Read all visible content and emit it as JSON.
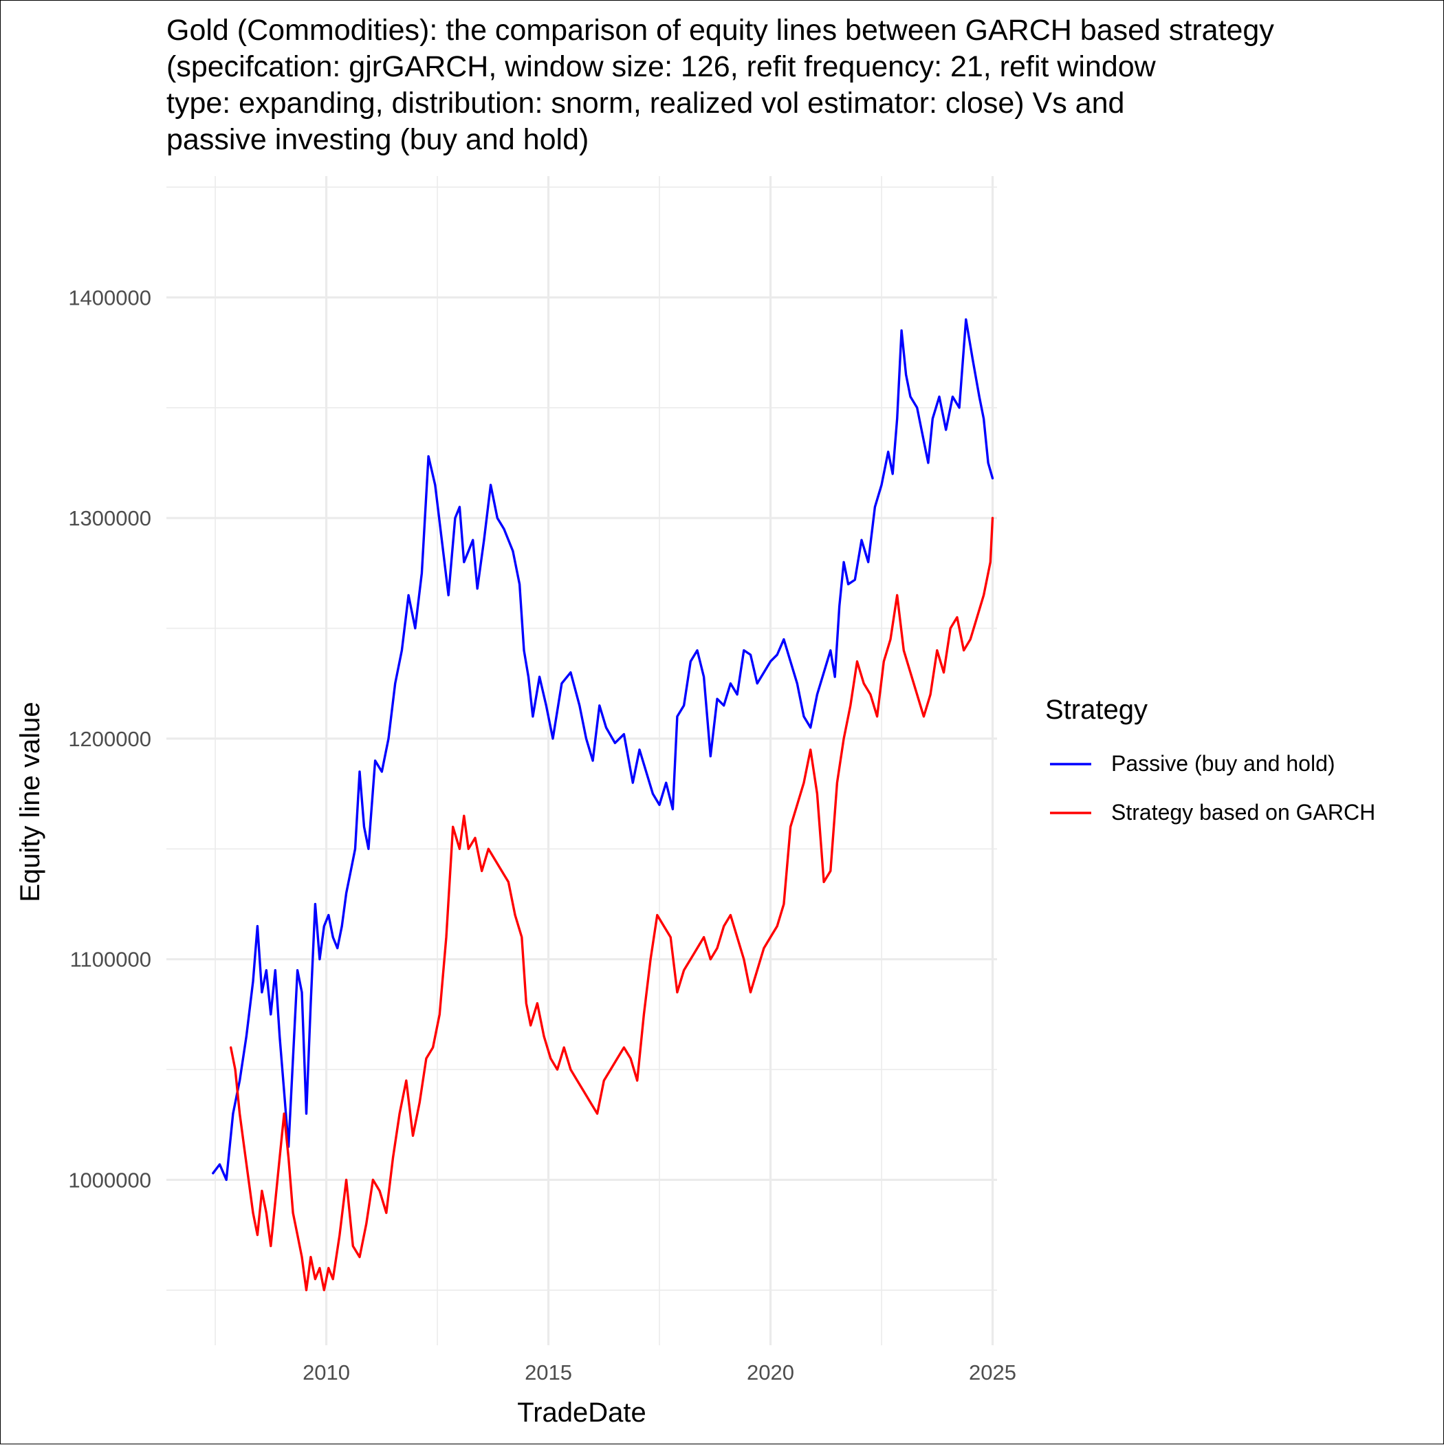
{
  "chart_data": {
    "type": "line",
    "title_lines": [
      "Gold (Commodities): the comparison of equity lines between GARCH based strategy",
      "(specifcation: gjrGARCH, window size: 126, refit frequency: 21, refit window",
      "type: expanding, distribution: snorm, realized vol estimator: close) Vs and",
      "passive investing (buy and hold)"
    ],
    "xlabel": "TradeDate",
    "ylabel": "Equity line value",
    "xlim": [
      2006.4,
      2025.1
    ],
    "ylim": [
      925000,
      1455000
    ],
    "x_ticks": [
      2010,
      2015,
      2020,
      2025
    ],
    "x_tick_labels": [
      "2010",
      "2015",
      "2020",
      "2025"
    ],
    "y_ticks": [
      1000000,
      1100000,
      1200000,
      1300000,
      1400000
    ],
    "y_tick_labels": [
      "1000000",
      "1100000",
      "1200000",
      "1300000",
      "1400000"
    ],
    "grid": true,
    "legend": {
      "title": "Strategy",
      "position": "right",
      "entries": [
        "Passive (buy and hold)",
        "Strategy based on GARCH"
      ]
    },
    "series": [
      {
        "name": "Passive (buy and hold)",
        "color": "#0000ff",
        "points": [
          [
            2007.45,
            1003000
          ],
          [
            2007.6,
            1007000
          ],
          [
            2007.75,
            1000000
          ],
          [
            2007.9,
            1030000
          ],
          [
            2008.05,
            1045000
          ],
          [
            2008.2,
            1065000
          ],
          [
            2008.35,
            1090000
          ],
          [
            2008.45,
            1115000
          ],
          [
            2008.55,
            1085000
          ],
          [
            2008.65,
            1095000
          ],
          [
            2008.75,
            1075000
          ],
          [
            2008.85,
            1095000
          ],
          [
            2008.95,
            1065000
          ],
          [
            2009.05,
            1040000
          ],
          [
            2009.15,
            1015000
          ],
          [
            2009.25,
            1055000
          ],
          [
            2009.35,
            1095000
          ],
          [
            2009.45,
            1085000
          ],
          [
            2009.55,
            1030000
          ],
          [
            2009.65,
            1080000
          ],
          [
            2009.75,
            1125000
          ],
          [
            2009.85,
            1100000
          ],
          [
            2009.95,
            1115000
          ],
          [
            2010.05,
            1120000
          ],
          [
            2010.15,
            1110000
          ],
          [
            2010.25,
            1105000
          ],
          [
            2010.35,
            1115000
          ],
          [
            2010.45,
            1130000
          ],
          [
            2010.55,
            1140000
          ],
          [
            2010.65,
            1150000
          ],
          [
            2010.75,
            1185000
          ],
          [
            2010.85,
            1160000
          ],
          [
            2010.95,
            1150000
          ],
          [
            2011.1,
            1190000
          ],
          [
            2011.25,
            1185000
          ],
          [
            2011.4,
            1200000
          ],
          [
            2011.55,
            1225000
          ],
          [
            2011.7,
            1240000
          ],
          [
            2011.85,
            1265000
          ],
          [
            2012.0,
            1250000
          ],
          [
            2012.15,
            1275000
          ],
          [
            2012.3,
            1328000
          ],
          [
            2012.45,
            1315000
          ],
          [
            2012.6,
            1290000
          ],
          [
            2012.75,
            1265000
          ],
          [
            2012.9,
            1300000
          ],
          [
            2013.0,
            1305000
          ],
          [
            2013.1,
            1280000
          ],
          [
            2013.2,
            1285000
          ],
          [
            2013.3,
            1290000
          ],
          [
            2013.4,
            1268000
          ],
          [
            2013.55,
            1290000
          ],
          [
            2013.7,
            1315000
          ],
          [
            2013.85,
            1300000
          ],
          [
            2014.0,
            1295000
          ],
          [
            2014.2,
            1285000
          ],
          [
            2014.35,
            1270000
          ],
          [
            2014.45,
            1240000
          ],
          [
            2014.55,
            1228000
          ],
          [
            2014.65,
            1210000
          ],
          [
            2014.8,
            1228000
          ],
          [
            2014.95,
            1215000
          ],
          [
            2015.1,
            1200000
          ],
          [
            2015.3,
            1225000
          ],
          [
            2015.5,
            1230000
          ],
          [
            2015.7,
            1215000
          ],
          [
            2015.85,
            1200000
          ],
          [
            2016.0,
            1190000
          ],
          [
            2016.15,
            1215000
          ],
          [
            2016.3,
            1205000
          ],
          [
            2016.5,
            1198000
          ],
          [
            2016.7,
            1202000
          ],
          [
            2016.9,
            1180000
          ],
          [
            2017.05,
            1195000
          ],
          [
            2017.2,
            1185000
          ],
          [
            2017.35,
            1175000
          ],
          [
            2017.5,
            1170000
          ],
          [
            2017.65,
            1180000
          ],
          [
            2017.8,
            1168000
          ],
          [
            2017.9,
            1210000
          ],
          [
            2018.05,
            1215000
          ],
          [
            2018.2,
            1235000
          ],
          [
            2018.35,
            1240000
          ],
          [
            2018.5,
            1228000
          ],
          [
            2018.65,
            1192000
          ],
          [
            2018.8,
            1218000
          ],
          [
            2018.95,
            1215000
          ],
          [
            2019.1,
            1225000
          ],
          [
            2019.25,
            1220000
          ],
          [
            2019.4,
            1240000
          ],
          [
            2019.55,
            1238000
          ],
          [
            2019.7,
            1225000
          ],
          [
            2019.85,
            1230000
          ],
          [
            2020.0,
            1235000
          ],
          [
            2020.15,
            1238000
          ],
          [
            2020.3,
            1245000
          ],
          [
            2020.45,
            1235000
          ],
          [
            2020.6,
            1225000
          ],
          [
            2020.75,
            1210000
          ],
          [
            2020.9,
            1205000
          ],
          [
            2021.05,
            1220000
          ],
          [
            2021.2,
            1230000
          ],
          [
            2021.35,
            1240000
          ],
          [
            2021.45,
            1228000
          ],
          [
            2021.55,
            1260000
          ],
          [
            2021.65,
            1280000
          ],
          [
            2021.75,
            1270000
          ],
          [
            2021.9,
            1272000
          ],
          [
            2022.05,
            1290000
          ],
          [
            2022.2,
            1280000
          ],
          [
            2022.35,
            1305000
          ],
          [
            2022.5,
            1315000
          ],
          [
            2022.65,
            1330000
          ],
          [
            2022.75,
            1320000
          ],
          [
            2022.85,
            1345000
          ],
          [
            2022.95,
            1385000
          ],
          [
            2023.05,
            1365000
          ],
          [
            2023.15,
            1355000
          ],
          [
            2023.3,
            1350000
          ],
          [
            2023.45,
            1335000
          ],
          [
            2023.55,
            1325000
          ],
          [
            2023.65,
            1345000
          ],
          [
            2023.8,
            1355000
          ],
          [
            2023.95,
            1340000
          ],
          [
            2024.1,
            1355000
          ],
          [
            2024.25,
            1350000
          ],
          [
            2024.4,
            1390000
          ],
          [
            2024.55,
            1372000
          ],
          [
            2024.7,
            1355000
          ],
          [
            2024.8,
            1345000
          ],
          [
            2024.9,
            1325000
          ],
          [
            2025.0,
            1318000
          ]
        ]
      },
      {
        "name": "Strategy based on GARCH",
        "color": "#ff0000",
        "points": [
          [
            2007.85,
            1060000
          ],
          [
            2007.95,
            1050000
          ],
          [
            2008.05,
            1030000
          ],
          [
            2008.15,
            1015000
          ],
          [
            2008.25,
            1000000
          ],
          [
            2008.35,
            985000
          ],
          [
            2008.45,
            975000
          ],
          [
            2008.55,
            995000
          ],
          [
            2008.65,
            985000
          ],
          [
            2008.75,
            970000
          ],
          [
            2008.85,
            990000
          ],
          [
            2008.95,
            1010000
          ],
          [
            2009.05,
            1030000
          ],
          [
            2009.15,
            1010000
          ],
          [
            2009.25,
            985000
          ],
          [
            2009.35,
            975000
          ],
          [
            2009.45,
            965000
          ],
          [
            2009.55,
            950000
          ],
          [
            2009.65,
            965000
          ],
          [
            2009.75,
            955000
          ],
          [
            2009.85,
            960000
          ],
          [
            2009.95,
            950000
          ],
          [
            2010.05,
            960000
          ],
          [
            2010.15,
            955000
          ],
          [
            2010.3,
            975000
          ],
          [
            2010.45,
            1000000
          ],
          [
            2010.6,
            970000
          ],
          [
            2010.75,
            965000
          ],
          [
            2010.9,
            980000
          ],
          [
            2011.05,
            1000000
          ],
          [
            2011.2,
            995000
          ],
          [
            2011.35,
            985000
          ],
          [
            2011.5,
            1010000
          ],
          [
            2011.65,
            1030000
          ],
          [
            2011.8,
            1045000
          ],
          [
            2011.95,
            1020000
          ],
          [
            2012.1,
            1035000
          ],
          [
            2012.25,
            1055000
          ],
          [
            2012.4,
            1060000
          ],
          [
            2012.55,
            1075000
          ],
          [
            2012.7,
            1110000
          ],
          [
            2012.85,
            1160000
          ],
          [
            2013.0,
            1150000
          ],
          [
            2013.1,
            1165000
          ],
          [
            2013.2,
            1150000
          ],
          [
            2013.35,
            1155000
          ],
          [
            2013.5,
            1140000
          ],
          [
            2013.65,
            1150000
          ],
          [
            2013.8,
            1145000
          ],
          [
            2013.95,
            1140000
          ],
          [
            2014.1,
            1135000
          ],
          [
            2014.25,
            1120000
          ],
          [
            2014.4,
            1110000
          ],
          [
            2014.5,
            1080000
          ],
          [
            2014.6,
            1070000
          ],
          [
            2014.75,
            1080000
          ],
          [
            2014.9,
            1065000
          ],
          [
            2015.05,
            1055000
          ],
          [
            2015.2,
            1050000
          ],
          [
            2015.35,
            1060000
          ],
          [
            2015.5,
            1050000
          ],
          [
            2015.65,
            1045000
          ],
          [
            2015.8,
            1040000
          ],
          [
            2015.95,
            1035000
          ],
          [
            2016.1,
            1030000
          ],
          [
            2016.25,
            1045000
          ],
          [
            2016.4,
            1050000
          ],
          [
            2016.55,
            1055000
          ],
          [
            2016.7,
            1060000
          ],
          [
            2016.85,
            1055000
          ],
          [
            2017.0,
            1045000
          ],
          [
            2017.15,
            1075000
          ],
          [
            2017.3,
            1100000
          ],
          [
            2017.45,
            1120000
          ],
          [
            2017.6,
            1115000
          ],
          [
            2017.75,
            1110000
          ],
          [
            2017.9,
            1085000
          ],
          [
            2018.05,
            1095000
          ],
          [
            2018.2,
            1100000
          ],
          [
            2018.35,
            1105000
          ],
          [
            2018.5,
            1110000
          ],
          [
            2018.65,
            1100000
          ],
          [
            2018.8,
            1105000
          ],
          [
            2018.95,
            1115000
          ],
          [
            2019.1,
            1120000
          ],
          [
            2019.25,
            1110000
          ],
          [
            2019.4,
            1100000
          ],
          [
            2019.55,
            1085000
          ],
          [
            2019.7,
            1095000
          ],
          [
            2019.85,
            1105000
          ],
          [
            2020.0,
            1110000
          ],
          [
            2020.15,
            1115000
          ],
          [
            2020.3,
            1125000
          ],
          [
            2020.45,
            1160000
          ],
          [
            2020.6,
            1170000
          ],
          [
            2020.75,
            1180000
          ],
          [
            2020.9,
            1195000
          ],
          [
            2021.05,
            1175000
          ],
          [
            2021.2,
            1135000
          ],
          [
            2021.35,
            1140000
          ],
          [
            2021.5,
            1180000
          ],
          [
            2021.65,
            1200000
          ],
          [
            2021.8,
            1215000
          ],
          [
            2021.95,
            1235000
          ],
          [
            2022.1,
            1225000
          ],
          [
            2022.25,
            1220000
          ],
          [
            2022.4,
            1210000
          ],
          [
            2022.55,
            1235000
          ],
          [
            2022.7,
            1245000
          ],
          [
            2022.85,
            1265000
          ],
          [
            2023.0,
            1240000
          ],
          [
            2023.15,
            1230000
          ],
          [
            2023.3,
            1220000
          ],
          [
            2023.45,
            1210000
          ],
          [
            2023.6,
            1220000
          ],
          [
            2023.75,
            1240000
          ],
          [
            2023.9,
            1230000
          ],
          [
            2024.05,
            1250000
          ],
          [
            2024.2,
            1255000
          ],
          [
            2024.35,
            1240000
          ],
          [
            2024.5,
            1245000
          ],
          [
            2024.65,
            1255000
          ],
          [
            2024.8,
            1265000
          ],
          [
            2024.95,
            1280000
          ],
          [
            2025.0,
            1300000
          ]
        ]
      }
    ]
  }
}
